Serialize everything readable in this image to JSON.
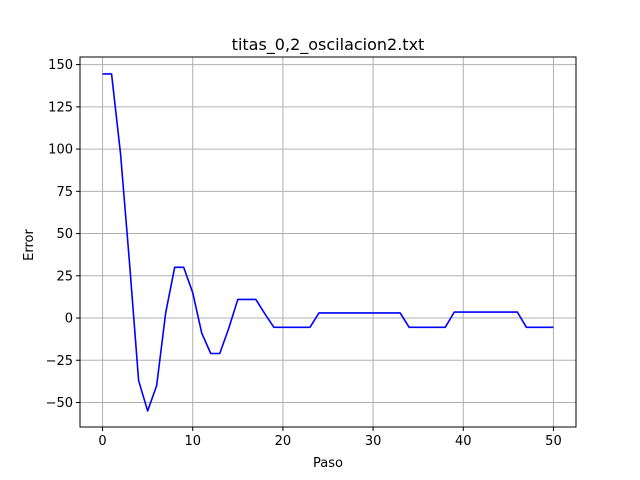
{
  "chart_data": {
    "type": "line",
    "title": "titas_0,2_oscilacion2.txt",
    "xlabel": "Paso",
    "ylabel": "Error",
    "xlim": [
      -2.5,
      52.5
    ],
    "ylim": [
      -64.5,
      154.5
    ],
    "xticks": [
      0,
      10,
      20,
      30,
      40,
      50
    ],
    "yticks": [
      -50,
      -25,
      0,
      25,
      50,
      75,
      100,
      125,
      150
    ],
    "grid": true,
    "series": [
      {
        "color": "#0000ff",
        "x": [
          0,
          1,
          2,
          3,
          4,
          5,
          6,
          7,
          8,
          9,
          10,
          11,
          12,
          13,
          14,
          15,
          16,
          17,
          18,
          19,
          20,
          21,
          22,
          23,
          24,
          25,
          26,
          27,
          28,
          29,
          30,
          31,
          32,
          33,
          34,
          35,
          36,
          37,
          38,
          39,
          40,
          41,
          42,
          43,
          44,
          45,
          46,
          47,
          48,
          49,
          50
        ],
        "y": [
          144.5,
          144.5,
          97,
          32,
          -37,
          -55,
          -40,
          3,
          30,
          30,
          15,
          -9,
          -21,
          -21,
          -6,
          11,
          11,
          11,
          2.5,
          -5.5,
          -5.5,
          -5.5,
          -5.5,
          -5.5,
          3,
          3,
          3,
          3,
          3,
          3,
          3,
          3,
          3,
          3,
          -5.5,
          -5.5,
          -5.5,
          -5.5,
          -5.5,
          3.5,
          3.5,
          3.5,
          3.5,
          3.5,
          3.5,
          3.5,
          3.5,
          -5.5,
          -5.5,
          -5.5,
          -5.5
        ]
      }
    ]
  }
}
